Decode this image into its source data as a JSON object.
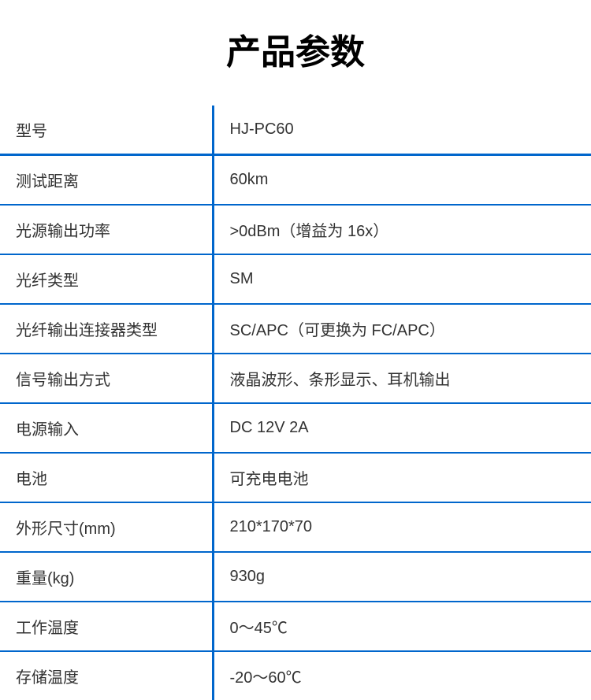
{
  "title": "产品参数",
  "rows": [
    {
      "label": "型号",
      "value": "HJ-PC60"
    },
    {
      "label": "测试距离",
      "value": "60km"
    },
    {
      "label": "光源输出功率",
      "value": ">0dBm（增益为 16x）"
    },
    {
      "label": "光纤类型",
      "value": "SM"
    },
    {
      "label": "光纤输出连接器类型",
      "value": "SC/APC（可更换为 FC/APC）"
    },
    {
      "label": "信号输出方式",
      "value": "液晶波形、条形显示、耳机输出"
    },
    {
      "label": "电源输入",
      "value": "DC 12V 2A"
    },
    {
      "label": "电池",
      "value": "可充电电池"
    },
    {
      "label": "外形尺寸(mm)",
      "value": "210*170*70"
    },
    {
      "label": "重量(kg)",
      "value": "930g"
    },
    {
      "label": "工作温度",
      "value": "0～45℃"
    },
    {
      "label": "存储温度",
      "value": "-20～60℃"
    }
  ],
  "colors": {
    "border": "#0066cc",
    "text": "#333333",
    "title": "#000000",
    "background": "#ffffff"
  },
  "typography": {
    "title_fontsize": 44,
    "cell_fontsize": 20
  }
}
